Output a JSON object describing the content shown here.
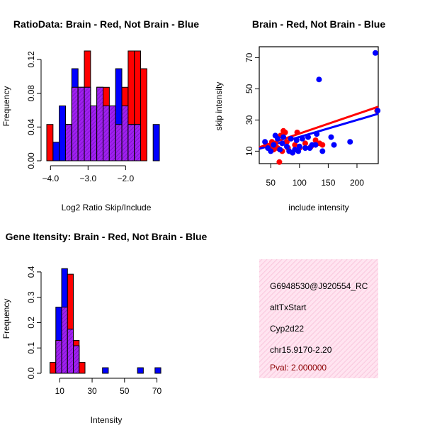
{
  "colors": {
    "brain": "#ff0000",
    "not_brain": "#0000ff",
    "overlap": "#a020f0",
    "info_bg": "#ffddee",
    "pval": "#8b0000"
  },
  "chart_data": [
    {
      "type": "bar",
      "subtype": "overlaid-histogram",
      "title": "RatioData: Brain - Red, Not Brain - Blue",
      "xlabel": "Log2 Ratio Skip/Include",
      "ylabel": "Frequency",
      "xlim": [
        -4.1,
        -0.95
      ],
      "ylim": [
        0,
        0.135
      ],
      "bin_width": 0.1667,
      "bin_lefts": [
        -4.1,
        -3.933,
        -3.767,
        -3.6,
        -3.433,
        -3.267,
        -3.1,
        -2.933,
        -2.767,
        -2.6,
        -2.433,
        -2.267,
        -2.1,
        -1.933,
        -1.767,
        -1.6,
        -1.433,
        -1.267
      ],
      "series": [
        {
          "name": "Brain",
          "color": "red",
          "values": [
            0.043,
            0,
            0,
            0.043,
            0.087,
            0.087,
            0.13,
            0.065,
            0.087,
            0.087,
            0.065,
            0.043,
            0.087,
            0.13,
            0.13,
            0.109,
            0,
            0
          ]
        },
        {
          "name": "Not Brain",
          "color": "blue",
          "values": [
            0,
            0.022,
            0.065,
            0.043,
            0.109,
            0.087,
            0.087,
            0.065,
            0.087,
            0.065,
            0.065,
            0.109,
            0.065,
            0.043,
            0.043,
            0,
            0,
            0.043
          ]
        }
      ],
      "xticks": [
        -4.0,
        -3.0,
        -2.0
      ],
      "xtick_labels": [
        "−4.0",
        "−3.0",
        "−2.0"
      ],
      "yticks": [
        0.0,
        0.04,
        0.08,
        0.12
      ],
      "ytick_labels": [
        "0.00",
        "0.04",
        "0.08",
        "0.12"
      ]
    },
    {
      "type": "scatter",
      "title": "Brain - Red, Not Brain - Blue",
      "xlabel": "include intensity",
      "ylabel": "skip intensity",
      "xlim": [
        30,
        237
      ],
      "ylim": [
        2,
        77
      ],
      "series": [
        {
          "name": "Brain",
          "color": "red",
          "points": [
            [
              42,
              14
            ],
            [
              48,
              13
            ],
            [
              52,
              16
            ],
            [
              55,
              11
            ],
            [
              58,
              15
            ],
            [
              62,
              12
            ],
            [
              65,
              3
            ],
            [
              67,
              20
            ],
            [
              70,
              10
            ],
            [
              72,
              23
            ],
            [
              75,
              22
            ],
            [
              78,
              16
            ],
            [
              80,
              12
            ],
            [
              85,
              18
            ],
            [
              88,
              9
            ],
            [
              92,
              14
            ],
            [
              96,
              22
            ],
            [
              100,
              12
            ],
            [
              110,
              15
            ],
            [
              120,
              13
            ],
            [
              128,
              17
            ],
            [
              135,
              15
            ],
            [
              140,
              14
            ],
            [
              235,
              36
            ]
          ]
        },
        {
          "name": "Not Brain",
          "color": "blue",
          "points": [
            [
              40,
              16
            ],
            [
              45,
              12
            ],
            [
              50,
              10
            ],
            [
              55,
              14
            ],
            [
              58,
              20
            ],
            [
              62,
              18
            ],
            [
              66,
              11
            ],
            [
              70,
              15
            ],
            [
              72,
              19
            ],
            [
              78,
              13
            ],
            [
              82,
              10
            ],
            [
              85,
              18
            ],
            [
              88,
              9
            ],
            [
              92,
              11
            ],
            [
              95,
              17
            ],
            [
              98,
              10
            ],
            [
              100,
              13
            ],
            [
              105,
              18
            ],
            [
              110,
              12
            ],
            [
              115,
              19
            ],
            [
              118,
              12
            ],
            [
              122,
              14
            ],
            [
              128,
              14
            ],
            [
              130,
              21
            ],
            [
              134,
              56
            ],
            [
              140,
              10
            ],
            [
              155,
              19
            ],
            [
              160,
              14
            ],
            [
              188,
              16
            ],
            [
              232,
              73
            ],
            [
              236,
              36
            ]
          ]
        }
      ],
      "fit_lines": [
        {
          "name": "Brain",
          "color": "red",
          "from": [
            30,
            12.5
          ],
          "to": [
            237,
            38.5
          ]
        },
        {
          "name": "Not Brain",
          "color": "blue",
          "from": [
            30,
            11.5
          ],
          "to": [
            237,
            34.0
          ]
        }
      ],
      "xticks": [
        50,
        100,
        150,
        200
      ],
      "xtick_labels": [
        "50",
        "100",
        "150",
        "200"
      ],
      "yticks": [
        10,
        30,
        50,
        70
      ],
      "ytick_labels": [
        "10",
        "30",
        "50",
        "70"
      ]
    },
    {
      "type": "bar",
      "subtype": "overlaid-histogram",
      "title": "Gene Itensity: Brain - Red, Not Brain - Blue",
      "xlabel": "Intensity",
      "ylabel": "Frequency",
      "xlim": [
        2,
        75
      ],
      "ylim": [
        0,
        0.45
      ],
      "bin_width": 3.6,
      "bin_lefts": [
        4,
        7.6,
        11.2,
        14.8,
        18.4,
        22,
        25.6,
        29.2,
        32.8,
        36.4,
        40,
        43.6,
        47.2,
        50.8,
        54.4,
        58,
        61.6,
        65.2,
        68.8
      ],
      "series": [
        {
          "name": "Brain",
          "color": "red",
          "values": [
            0.043,
            0.13,
            0.261,
            0.391,
            0.13,
            0.043,
            0,
            0,
            0,
            0,
            0,
            0,
            0,
            0,
            0,
            0,
            0,
            0,
            0
          ]
        },
        {
          "name": "Not Brain",
          "color": "blue",
          "values": [
            0,
            0.261,
            0.413,
            0.174,
            0.109,
            0,
            0,
            0,
            0,
            0.022,
            0,
            0,
            0,
            0,
            0,
            0.022,
            0,
            0,
            0.022
          ]
        }
      ],
      "xticks": [
        10,
        30,
        50,
        70
      ],
      "xtick_labels": [
        "10",
        "30",
        "50",
        "70"
      ],
      "yticks": [
        0.0,
        0.1,
        0.2,
        0.3,
        0.4
      ],
      "ytick_labels": [
        "0.0",
        "0.1",
        "0.2",
        "0.3",
        "0.4"
      ]
    }
  ],
  "info_box": {
    "id": "G6948530@J920554_RC",
    "event_type": "altTxStart",
    "gene": "Cyp2d22",
    "location": "chr15.9170-2.20",
    "pval": "Pval: 2.000000"
  }
}
